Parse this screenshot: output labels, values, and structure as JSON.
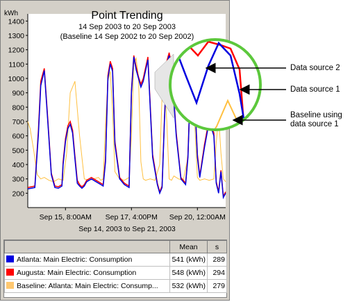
{
  "chart": {
    "title": "Point Trending",
    "subtitle": "14 Sep 2003 to 20 Sep 2003",
    "baseline_range": "(Baseline 14 Sep 2002 to 20 Sep 2002)",
    "y_unit": "kWh",
    "y_ticks": [
      "1400",
      "1300",
      "1200",
      "1100",
      "1000",
      "900",
      "800",
      "700",
      "600",
      "500",
      "400",
      "300",
      "200"
    ],
    "x_ticks": [
      "Sep 15, 8:00AM",
      "Sep 17, 4:00PM",
      "Sep 20, 12:00AM"
    ],
    "x_range_label": "Sep 14, 2003 to Sep 21, 2003"
  },
  "chart_data": {
    "type": "line",
    "title": "Point Trending",
    "ylabel": "kWh",
    "ylim": [
      100,
      1450
    ],
    "x_unit": "hours since Sep 14, 2003 00:00",
    "xlim": [
      0,
      168
    ],
    "colors": {
      "atlanta": "#0000e0",
      "augusta": "#ff0000",
      "baseline": "#ffc040"
    },
    "series": [
      {
        "name": "Atlanta: Main Electric: Consumption",
        "x": [
          0,
          6,
          9,
          11,
          14,
          17,
          20,
          23,
          26,
          29,
          30,
          32,
          34,
          36,
          38,
          40,
          42,
          44,
          46,
          48,
          50,
          54,
          58,
          62,
          64,
          66,
          68,
          70,
          72,
          74,
          78,
          82,
          86,
          88,
          90,
          92,
          94,
          96,
          98,
          102,
          106,
          110,
          112,
          114,
          116,
          118,
          120,
          122,
          126,
          130,
          134,
          136,
          138,
          140,
          142,
          144,
          146,
          150,
          154,
          158,
          160,
          162,
          164,
          166,
          168
        ],
        "values": [
          230,
          240,
          610,
          950,
          1055,
          700,
          330,
          240,
          235,
          250,
          400,
          560,
          650,
          680,
          620,
          440,
          270,
          250,
          235,
          250,
          280,
          300,
          280,
          260,
          250,
          420,
          1000,
          1100,
          1050,
          540,
          300,
          260,
          240,
          900,
          1150,
          1060,
          1000,
          940,
          980,
          1130,
          450,
          260,
          200,
          240,
          700,
          1100,
          1160,
          1090,
          600,
          300,
          260,
          450,
          950,
          1050,
          800,
          450,
          310,
          520,
          700,
          600,
          270,
          200,
          350,
          170,
          200
        ]
      },
      {
        "name": "Augusta: Main Electric: Consumption",
        "x": [
          0,
          6,
          9,
          11,
          14,
          17,
          20,
          23,
          26,
          29,
          30,
          32,
          34,
          36,
          38,
          40,
          42,
          44,
          46,
          48,
          50,
          54,
          58,
          62,
          64,
          66,
          68,
          70,
          72,
          74,
          78,
          82,
          86,
          88,
          90,
          92,
          94,
          96,
          98,
          102,
          106,
          110,
          112,
          114,
          116,
          118,
          120,
          122,
          126,
          130,
          134,
          136,
          138,
          140,
          142,
          144,
          146,
          150,
          154,
          158,
          160,
          162,
          164,
          166,
          168
        ],
        "values": [
          240,
          250,
          640,
          980,
          1070,
          720,
          340,
          250,
          245,
          260,
          420,
          580,
          670,
          700,
          640,
          460,
          290,
          260,
          245,
          260,
          290,
          310,
          290,
          270,
          260,
          440,
          1020,
          1120,
          1070,
          560,
          310,
          270,
          250,
          920,
          1160,
          1080,
          1010,
          960,
          1000,
          1150,
          470,
          270,
          210,
          250,
          720,
          1120,
          1180,
          1100,
          620,
          310,
          270,
          470,
          970,
          1070,
          820,
          470,
          320,
          540,
          720,
          620,
          280,
          210,
          360,
          180,
          210
        ]
      },
      {
        "name": "Baseline: Atlanta: Main Electric: Consumption",
        "x": [
          0,
          2,
          5,
          8,
          11,
          14,
          18,
          22,
          26,
          30,
          33,
          36,
          40,
          44,
          48,
          52,
          56,
          60,
          62,
          64,
          66,
          68,
          70,
          72,
          74,
          78,
          82,
          86,
          88,
          90,
          92,
          94,
          96,
          98,
          100,
          104,
          108,
          112,
          114,
          116,
          118,
          120,
          122,
          124,
          128,
          132,
          136,
          138,
          140,
          142,
          144,
          146,
          150,
          154,
          158,
          160,
          162,
          164,
          166,
          168
        ],
        "values": [
          700,
          650,
          500,
          330,
          300,
          310,
          290,
          280,
          300,
          290,
          480,
          900,
          980,
          600,
          300,
          290,
          300,
          310,
          290,
          300,
          680,
          980,
          1050,
          780,
          350,
          300,
          290,
          310,
          600,
          1100,
          1140,
          1000,
          420,
          300,
          290,
          300,
          290,
          400,
          880,
          960,
          700,
          300,
          290,
          320,
          300,
          290,
          450,
          850,
          920,
          640,
          310,
          290,
          300,
          290,
          300,
          550,
          740,
          480,
          300,
          280
        ]
      }
    ]
  },
  "legend": {
    "headers": {
      "name": "",
      "mean": "Mean",
      "s": "s"
    },
    "rows": [
      {
        "name": "Atlanta: Main Electric: Consumption",
        "mean": "541 (kWh)",
        "s": "289",
        "color": "#0000e0"
      },
      {
        "name": "Augusta: Main Electric: Consumption",
        "mean": "548 (kWh)",
        "s": "294",
        "color": "#ff0000"
      },
      {
        "name": "Baseline: Atlanta: Main Electric: Consump...",
        "mean": "532 (kWh)",
        "s": "279",
        "color": "#ffc870"
      }
    ]
  },
  "callouts": {
    "source2": "Data source 2",
    "source1": "Data source 1",
    "baseline_line1": "Baseline using",
    "baseline_line2": "data source 1"
  },
  "magnifier_color": "#5cc83c"
}
